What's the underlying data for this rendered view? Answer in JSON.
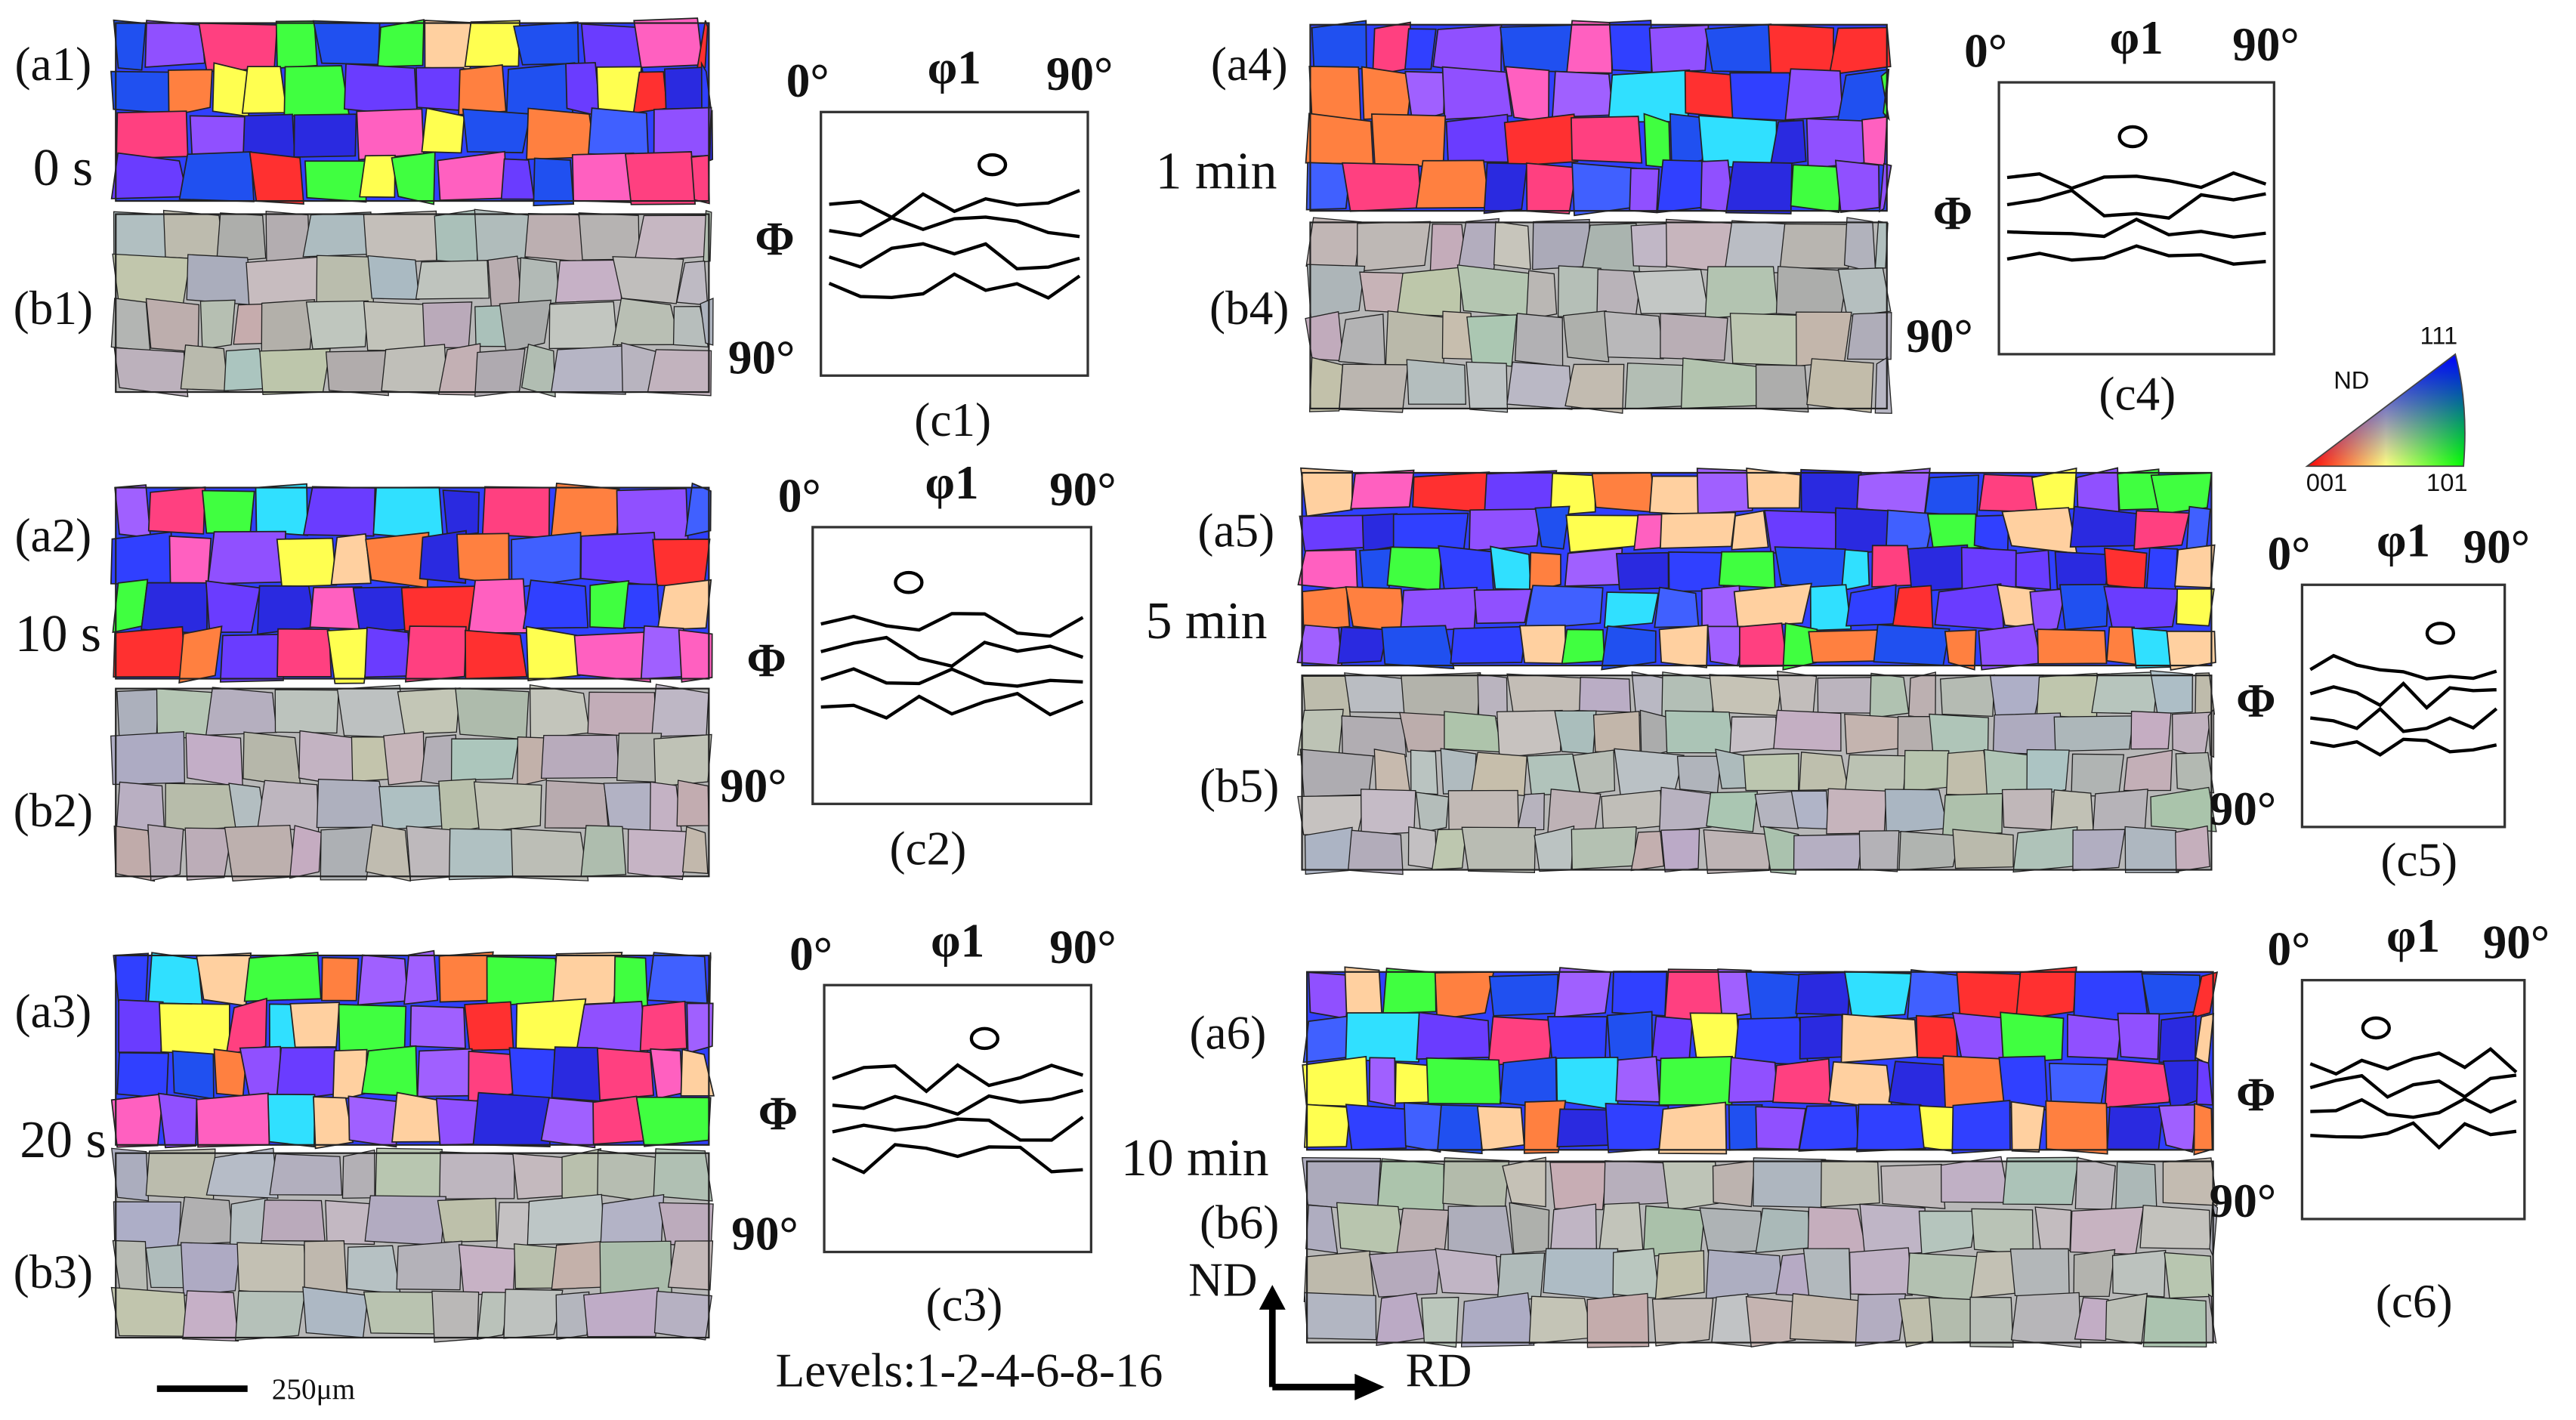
{
  "panels": [
    {
      "a_label": "(a1)",
      "time": "0 s",
      "b_label": "(b1)",
      "odf": {
        "phi1_min": "0°",
        "phi1": "φ1",
        "phi1_max": "90°",
        "Phi": "Φ",
        "Phi_max": "90°",
        "label": "(c1)"
      }
    },
    {
      "a_label": "(a2)",
      "time": "10 s",
      "b_label": "(b2)",
      "odf": {
        "phi1_min": "0°",
        "phi1": "φ1",
        "phi1_max": "90°",
        "Phi": "Φ",
        "Phi_max": "90°",
        "label": "(c2)"
      }
    },
    {
      "a_label": "(a3)",
      "time": "20 s",
      "b_label": "(b3)",
      "odf": {
        "phi1_min": "0°",
        "phi1": "φ1",
        "phi1_max": "90°",
        "Phi": "Φ",
        "Phi_max": "90°",
        "label": "(c3)"
      }
    },
    {
      "a_label": "(a4)",
      "time": "1 min",
      "b_label": "(b4)",
      "odf": {
        "phi1_min": "0°",
        "phi1": "φ1",
        "phi1_max": "90°",
        "Phi": "Φ",
        "Phi_max": "90°",
        "label": "(c4)"
      }
    },
    {
      "a_label": "(a5)",
      "time": "5 min",
      "b_label": "(b5)",
      "odf": {
        "phi1_min": "0°",
        "phi1": "φ1",
        "phi1_max": "90°",
        "Phi": "Φ",
        "Phi_max": "90°",
        "label": "(c5)"
      }
    },
    {
      "a_label": "(a6)",
      "time": "10 min",
      "b_label": "(b6)",
      "odf": {
        "phi1_min": "0°",
        "phi1": "φ1",
        "phi1_max": "90°",
        "Phi": "Φ",
        "Phi_max": "90°",
        "label": "(c6)"
      }
    }
  ],
  "levels": "Levels:1-2-4-6-8-16",
  "scale_bar": "250μm",
  "axes": {
    "nd": "ND",
    "rd": "RD"
  },
  "ipf_legend": {
    "nd": "ND",
    "corner_111": "111",
    "corner_001": "001",
    "corner_101": "101"
  }
}
